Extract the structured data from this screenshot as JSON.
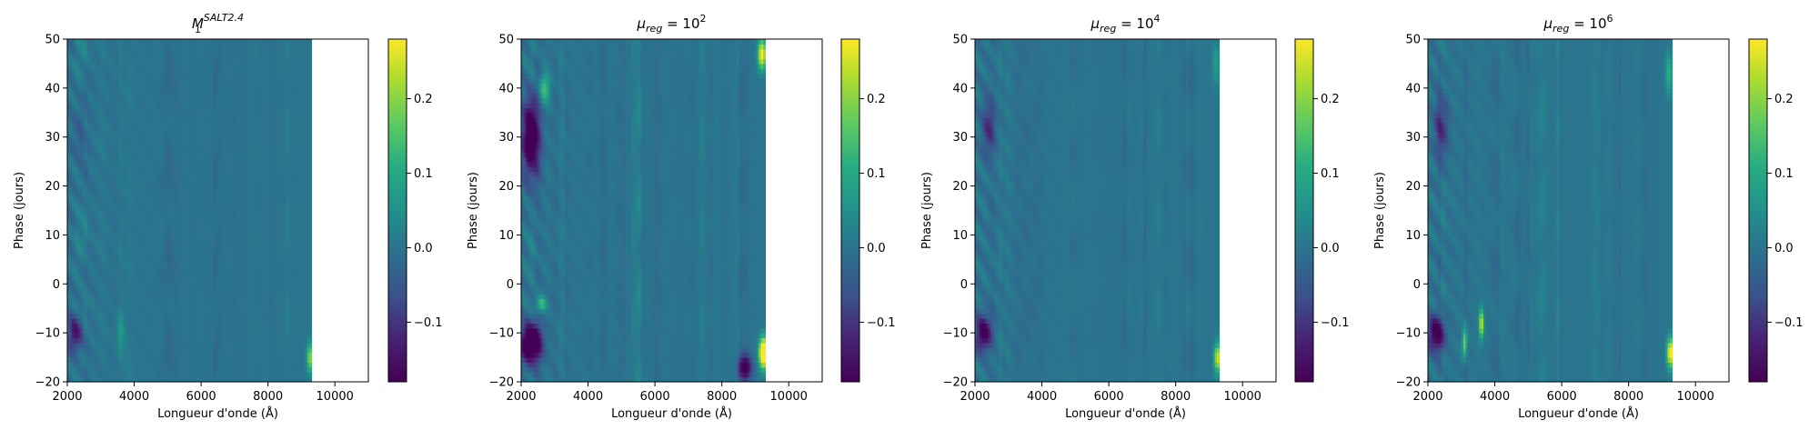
{
  "chart_data": [
    {
      "type": "heatmap",
      "title_main": "M",
      "title_sub": "1",
      "title_sup": "SALT2.4",
      "xlabel": "Longueur d'onde (Å)",
      "ylabel": "Phase (jours)",
      "xlim": [
        2000,
        11000
      ],
      "ylim": [
        -20,
        50
      ],
      "xticks": [
        "2000",
        "4000",
        "6000",
        "8000",
        "10000"
      ],
      "yticks": [
        "-20",
        "-10",
        "0",
        "10",
        "20",
        "30",
        "40",
        "50"
      ],
      "colorbar": {
        "min": -0.18,
        "max": 0.28,
        "ticks": [
          "-0.1",
          "0.0",
          "0.1",
          "0.2"
        ],
        "colormap": "viridis"
      },
      "data_extent_x": [
        2000,
        9300
      ],
      "features": [
        {
          "x": 2250,
          "y": -10,
          "value": -0.16,
          "sx": 230,
          "sy": 3.5
        },
        {
          "x": 9250,
          "y": -15,
          "value": 0.2,
          "sx": 90,
          "sy": 3
        },
        {
          "x": 3600,
          "y": -10,
          "value": 0.06,
          "sx": 120,
          "sy": 4
        },
        {
          "x": 2400,
          "y": 30,
          "value": -0.06,
          "sx": 200,
          "sy": 6
        }
      ]
    },
    {
      "type": "heatmap",
      "title_main": "μ",
      "title_sub": "reg",
      "title_mid": " = 10",
      "title_sup": "2",
      "xlabel": "Longueur d'onde (Å)",
      "ylabel": "Phase (jours)",
      "xlim": [
        2000,
        11000
      ],
      "ylim": [
        -20,
        50
      ],
      "xticks": [
        "2000",
        "4000",
        "6000",
        "8000",
        "10000"
      ],
      "yticks": [
        "-20",
        "-10",
        "0",
        "10",
        "20",
        "30",
        "40",
        "50"
      ],
      "colorbar": {
        "min": -0.18,
        "max": 0.28,
        "ticks": [
          "-0.1",
          "0.0",
          "0.1",
          "0.2"
        ],
        "colormap": "viridis"
      },
      "data_extent_x": [
        2000,
        9300
      ],
      "features": [
        {
          "x": 2300,
          "y": -12,
          "value": -0.3,
          "sx": 300,
          "sy": 4
        },
        {
          "x": 2300,
          "y": 30,
          "value": -0.25,
          "sx": 250,
          "sy": 8
        },
        {
          "x": 8700,
          "y": -17,
          "value": -0.2,
          "sx": 200,
          "sy": 2.5
        },
        {
          "x": 9250,
          "y": -14,
          "value": 0.45,
          "sx": 130,
          "sy": 3
        },
        {
          "x": 9200,
          "y": 47,
          "value": 0.3,
          "sx": 120,
          "sy": 3
        },
        {
          "x": 2600,
          "y": -4,
          "value": 0.15,
          "sx": 150,
          "sy": 1.5
        },
        {
          "x": 2700,
          "y": 40,
          "value": 0.15,
          "sx": 150,
          "sy": 3
        }
      ]
    },
    {
      "type": "heatmap",
      "title_main": "μ",
      "title_sub": "reg",
      "title_mid": " = 10",
      "title_sup": "4",
      "xlabel": "Longueur d'onde (Å)",
      "ylabel": "Phase (jours)",
      "xlim": [
        2000,
        11000
      ],
      "ylim": [
        -20,
        50
      ],
      "xticks": [
        "2000",
        "4000",
        "6000",
        "8000",
        "10000"
      ],
      "yticks": [
        "-20",
        "-10",
        "0",
        "10",
        "20",
        "30",
        "40",
        "50"
      ],
      "colorbar": {
        "min": -0.18,
        "max": 0.28,
        "ticks": [
          "-0.1",
          "0.0",
          "0.1",
          "0.2"
        ],
        "colormap": "viridis"
      },
      "data_extent_x": [
        2000,
        9300
      ],
      "features": [
        {
          "x": 2250,
          "y": -10,
          "value": -0.2,
          "sx": 240,
          "sy": 3.5
        },
        {
          "x": 9250,
          "y": -15,
          "value": 0.25,
          "sx": 100,
          "sy": 3
        },
        {
          "x": 2400,
          "y": 32,
          "value": -0.1,
          "sx": 200,
          "sy": 6
        },
        {
          "x": 9200,
          "y": 45,
          "value": 0.08,
          "sx": 110,
          "sy": 4
        }
      ]
    },
    {
      "type": "heatmap",
      "title_main": "μ",
      "title_sub": "reg",
      "title_mid": " = 10",
      "title_sup": "6",
      "xlabel": "Longueur d'onde (Å)",
      "ylabel": "Phase (jours)",
      "xlim": [
        2000,
        11000
      ],
      "ylim": [
        -20,
        50
      ],
      "xticks": [
        "2000",
        "4000",
        "6000",
        "8000",
        "10000"
      ],
      "yticks": [
        "-20",
        "-10",
        "0",
        "10",
        "20",
        "30",
        "40",
        "50"
      ],
      "colorbar": {
        "min": -0.18,
        "max": 0.28,
        "ticks": [
          "-0.1",
          "0.0",
          "0.1",
          "0.2"
        ],
        "colormap": "viridis"
      },
      "data_extent_x": [
        2000,
        9300
      ],
      "features": [
        {
          "x": 2250,
          "y": -10,
          "value": -0.22,
          "sx": 240,
          "sy": 3.5
        },
        {
          "x": 9250,
          "y": -14,
          "value": 0.3,
          "sx": 110,
          "sy": 3
        },
        {
          "x": 3600,
          "y": -8,
          "value": 0.25,
          "sx": 70,
          "sy": 3
        },
        {
          "x": 3100,
          "y": -12,
          "value": 0.2,
          "sx": 70,
          "sy": 3
        },
        {
          "x": 2400,
          "y": 32,
          "value": -0.12,
          "sx": 200,
          "sy": 6
        },
        {
          "x": 9200,
          "y": 43,
          "value": 0.12,
          "sx": 100,
          "sy": 4
        }
      ]
    }
  ]
}
